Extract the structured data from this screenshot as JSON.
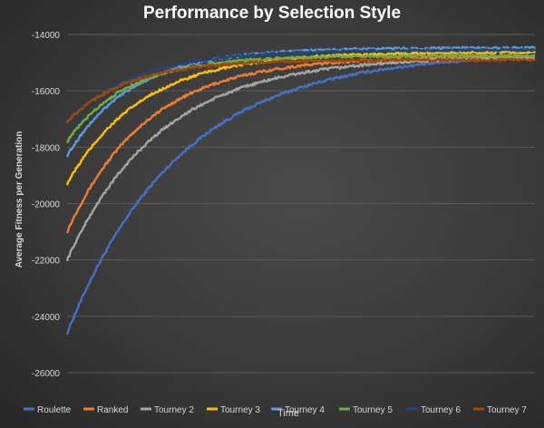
{
  "chart_data": {
    "type": "line",
    "title": "Performance by Selection Style",
    "xlabel": "Time",
    "ylabel": "Average Fitness per Generation",
    "ylim": [
      -26000,
      -14000
    ],
    "yticks": [
      -14000,
      -16000,
      -18000,
      -20000,
      -22000,
      -24000,
      -26000
    ],
    "xticks": [],
    "grid": "horizontal",
    "legend_position": "bottom",
    "series": [
      {
        "name": "Roulette",
        "color": "#4472c4",
        "start": -24600,
        "end": -14640,
        "tau": 0.24
      },
      {
        "name": "Ranked",
        "color": "#ed7d31",
        "start": -21000,
        "end": -14780,
        "tau": 0.17
      },
      {
        "name": "Tourney 2",
        "color": "#a5a5a5",
        "start": -22000,
        "end": -14780,
        "tau": 0.2
      },
      {
        "name": "Tourney 3",
        "color": "#ffc000",
        "start": -19300,
        "end": -14620,
        "tau": 0.16
      },
      {
        "name": "Tourney 4",
        "color": "#5b9bd5",
        "start": -18300,
        "end": -14480,
        "tau": 0.14
      },
      {
        "name": "Tourney 5",
        "color": "#70ad47",
        "start": -17800,
        "end": -14750,
        "tau": 0.13
      },
      {
        "name": "Tourney 6",
        "color": "#264478",
        "start": -17100,
        "end": -14550,
        "tau": 0.15
      },
      {
        "name": "Tourney 7",
        "color": "#9e480e",
        "start": -17100,
        "end": -14900,
        "tau": 0.13
      }
    ]
  }
}
